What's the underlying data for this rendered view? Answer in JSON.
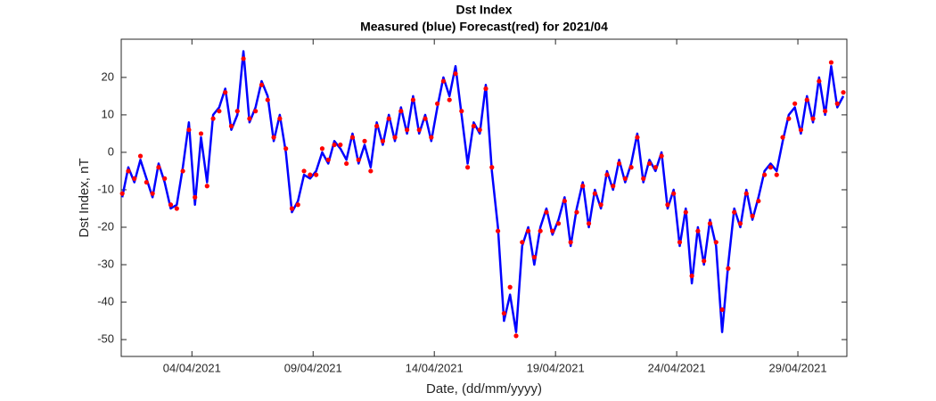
{
  "chart_data": {
    "type": "line",
    "title": "Dst Index",
    "subtitle": "Measured (blue) Forecast(red) for 2021/04",
    "x_label": "Date, (dd/mm/yyyy)",
    "y_label": "Dst Index, nT",
    "x": [
      "2021-04-01T03:00",
      "2021-04-01T09:00",
      "2021-04-01T15:00",
      "2021-04-01T21:00",
      "2021-04-02T03:00",
      "2021-04-02T09:00",
      "2021-04-02T15:00",
      "2021-04-02T21:00",
      "2021-04-03T03:00",
      "2021-04-03T09:00",
      "2021-04-03T15:00",
      "2021-04-03T21:00",
      "2021-04-04T03:00",
      "2021-04-04T09:00",
      "2021-04-04T15:00",
      "2021-04-04T21:00",
      "2021-04-05T03:00",
      "2021-04-05T09:00",
      "2021-04-05T15:00",
      "2021-04-05T21:00",
      "2021-04-06T03:00",
      "2021-04-06T09:00",
      "2021-04-06T15:00",
      "2021-04-06T21:00",
      "2021-04-07T03:00",
      "2021-04-07T09:00",
      "2021-04-07T15:00",
      "2021-04-07T21:00",
      "2021-04-08T03:00",
      "2021-04-08T09:00",
      "2021-04-08T15:00",
      "2021-04-08T21:00",
      "2021-04-09T03:00",
      "2021-04-09T09:00",
      "2021-04-09T15:00",
      "2021-04-09T21:00",
      "2021-04-10T03:00",
      "2021-04-10T09:00",
      "2021-04-10T15:00",
      "2021-04-10T21:00",
      "2021-04-11T03:00",
      "2021-04-11T09:00",
      "2021-04-11T15:00",
      "2021-04-11T21:00",
      "2021-04-12T03:00",
      "2021-04-12T09:00",
      "2021-04-12T15:00",
      "2021-04-12T21:00",
      "2021-04-13T03:00",
      "2021-04-13T09:00",
      "2021-04-13T15:00",
      "2021-04-13T21:00",
      "2021-04-14T03:00",
      "2021-04-14T09:00",
      "2021-04-14T15:00",
      "2021-04-14T21:00",
      "2021-04-15T03:00",
      "2021-04-15T09:00",
      "2021-04-15T15:00",
      "2021-04-15T21:00",
      "2021-04-16T03:00",
      "2021-04-16T09:00",
      "2021-04-16T15:00",
      "2021-04-16T21:00",
      "2021-04-17T03:00",
      "2021-04-17T09:00",
      "2021-04-17T15:00",
      "2021-04-17T21:00",
      "2021-04-18T03:00",
      "2021-04-18T09:00",
      "2021-04-18T15:00",
      "2021-04-18T21:00",
      "2021-04-19T03:00",
      "2021-04-19T09:00",
      "2021-04-19T15:00",
      "2021-04-19T21:00",
      "2021-04-20T03:00",
      "2021-04-20T09:00",
      "2021-04-20T15:00",
      "2021-04-20T21:00",
      "2021-04-21T03:00",
      "2021-04-21T09:00",
      "2021-04-21T15:00",
      "2021-04-21T21:00",
      "2021-04-22T03:00",
      "2021-04-22T09:00",
      "2021-04-22T15:00",
      "2021-04-22T21:00",
      "2021-04-23T03:00",
      "2021-04-23T09:00",
      "2021-04-23T15:00",
      "2021-04-23T21:00",
      "2021-04-24T03:00",
      "2021-04-24T09:00",
      "2021-04-24T15:00",
      "2021-04-24T21:00",
      "2021-04-25T03:00",
      "2021-04-25T09:00",
      "2021-04-25T15:00",
      "2021-04-25T21:00",
      "2021-04-26T03:00",
      "2021-04-26T09:00",
      "2021-04-26T15:00",
      "2021-04-26T21:00",
      "2021-04-27T03:00",
      "2021-04-27T09:00",
      "2021-04-27T15:00",
      "2021-04-27T21:00",
      "2021-04-28T03:00",
      "2021-04-28T09:00",
      "2021-04-28T15:00",
      "2021-04-28T21:00",
      "2021-04-29T03:00",
      "2021-04-29T09:00",
      "2021-04-29T15:00",
      "2021-04-29T21:00",
      "2021-04-30T03:00",
      "2021-04-30T09:00",
      "2021-04-30T15:00",
      "2021-04-30T21:00"
    ],
    "series": [
      {
        "color": "#0000ff",
        "mode": "line",
        "values": [
          -12,
          -4,
          -8,
          -2,
          -7,
          -12,
          -3,
          -8,
          -15,
          -14,
          -4,
          8,
          -14,
          4,
          -8,
          10,
          12,
          17,
          6,
          10,
          27,
          8,
          12,
          19,
          15,
          3,
          10,
          0,
          -16,
          -13,
          -6,
          -7,
          -5,
          0,
          -3,
          3,
          1,
          -2,
          5,
          -3,
          2,
          -4,
          8,
          2,
          10,
          3,
          12,
          5,
          15,
          5,
          10,
          3,
          12,
          20,
          15,
          23,
          10,
          -3,
          8,
          5,
          18,
          -5,
          -20,
          -45,
          -38,
          -48,
          -25,
          -20,
          -30,
          -20,
          -15,
          -22,
          -18,
          -12,
          -25,
          -15,
          -8,
          -20,
          -10,
          -15,
          -5,
          -10,
          -2,
          -8,
          -3,
          5,
          -8,
          -2,
          -5,
          0,
          -15,
          -10,
          -25,
          -15,
          -35,
          -20,
          -30,
          -18,
          -25,
          -48,
          -30,
          -15,
          -20,
          -10,
          -18,
          -12,
          -5,
          -3,
          -5,
          3,
          10,
          12,
          5,
          15,
          8,
          20,
          10,
          23,
          12,
          15
        ]
      },
      {
        "color": "#ff0000",
        "mode": "markers",
        "values": [
          -11,
          -5,
          -7,
          -1,
          -8,
          -11,
          -4,
          -7,
          -14,
          -15,
          -5,
          6,
          -12,
          5,
          -9,
          9,
          11,
          16,
          7,
          11,
          25,
          9,
          11,
          18,
          14,
          4,
          9,
          1,
          -15,
          -14,
          -5,
          -6,
          -6,
          1,
          -2,
          2,
          2,
          -3,
          4,
          -2,
          3,
          -5,
          7,
          3,
          9,
          4,
          11,
          6,
          14,
          6,
          9,
          4,
          13,
          19,
          14,
          21,
          11,
          -4,
          7,
          6,
          17,
          -4,
          -21,
          -43,
          -36,
          -49,
          -24,
          -21,
          -28,
          -21,
          -16,
          -21,
          -19,
          -13,
          -24,
          -16,
          -9,
          -19,
          -11,
          -14,
          -6,
          -9,
          -3,
          -7,
          -4,
          4,
          -7,
          -3,
          -4,
          -1,
          -14,
          -11,
          -24,
          -16,
          -33,
          -21,
          -29,
          -19,
          -24,
          -42,
          -31,
          -16,
          -19,
          -11,
          -17,
          -13,
          -6,
          -4,
          -6,
          4,
          9,
          13,
          6,
          14,
          9,
          19,
          11,
          24,
          13,
          16
        ]
      }
    ],
    "xlim": [
      "2021-04-01T02:00",
      "2021-05-01T00:30"
    ],
    "xticks": [
      {
        "value": "2021-04-04T00:00",
        "label": "04/04/2021"
      },
      {
        "value": "2021-04-09T00:00",
        "label": "09/04/2021"
      },
      {
        "value": "2021-04-14T00:00",
        "label": "14/04/2021"
      },
      {
        "value": "2021-04-19T00:00",
        "label": "19/04/2021"
      },
      {
        "value": "2021-04-24T00:00",
        "label": "24/04/2021"
      },
      {
        "value": "2021-04-29T00:00",
        "label": "29/04/2021"
      }
    ],
    "ylim": [
      -54.5,
      30.2
    ],
    "yticks": [
      -50,
      -40,
      -30,
      -20,
      -10,
      0,
      10,
      20
    ]
  }
}
